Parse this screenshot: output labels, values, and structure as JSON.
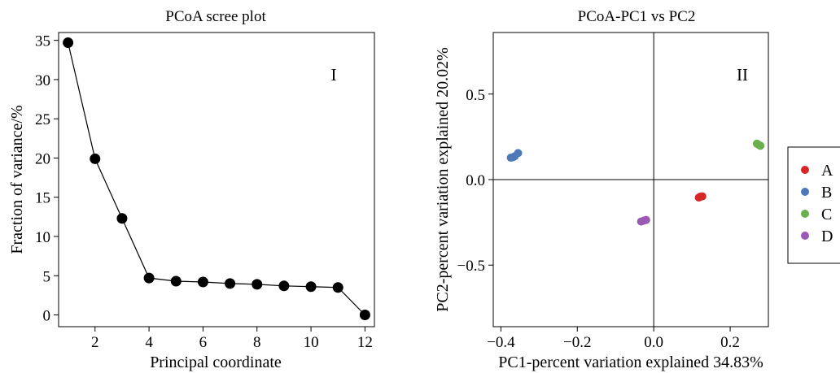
{
  "chart_data": [
    {
      "type": "line",
      "title": "PCoA scree plot",
      "panel_label": "I",
      "xlabel": "Principal coordinate",
      "ylabel": "Fraction of variance/%",
      "xlim": [
        0.65,
        12.35
      ],
      "ylim": [
        -1.5,
        36
      ],
      "xticks": [
        2,
        4,
        6,
        8,
        10,
        12
      ],
      "yticks": [
        0,
        5,
        10,
        15,
        20,
        25,
        30,
        35
      ],
      "x": [
        1,
        2,
        3,
        4,
        5,
        6,
        7,
        8,
        9,
        10,
        11,
        12
      ],
      "values": [
        34.7,
        19.9,
        12.3,
        4.7,
        4.3,
        4.2,
        4.0,
        3.9,
        3.7,
        3.6,
        3.5,
        0.0
      ],
      "marker_color": "#000000",
      "grid": false
    },
    {
      "type": "scatter",
      "title": "PCoA-PC1 vs PC2",
      "panel_label": "II",
      "xlabel": "PC1-percent variation explained 34.83%",
      "ylabel": "PC2-percent variation explained 20.02%",
      "xlim": [
        -0.42,
        0.3
      ],
      "ylim": [
        -0.86,
        0.86
      ],
      "xticks": [
        -0.4,
        -0.2,
        0.0,
        0.2
      ],
      "xtick_labels": [
        "−0.4",
        "−0.2",
        "0.0",
        "0.2"
      ],
      "yticks": [
        -0.5,
        0.0,
        0.5
      ],
      "ytick_labels": [
        "−0.5",
        "0.0",
        "0.5"
      ],
      "reference_lines": {
        "x": 0,
        "y": 0
      },
      "legend_position": "right",
      "series": [
        {
          "name": "A",
          "color": "#d62728",
          "points": [
            [
              0.118,
              -0.105
            ],
            [
              0.122,
              -0.1
            ],
            [
              0.127,
              -0.098
            ]
          ]
        },
        {
          "name": "B",
          "color": "#4e79b7",
          "points": [
            [
              -0.374,
              0.128
            ],
            [
              -0.369,
              0.13
            ],
            [
              -0.364,
              0.136
            ],
            [
              -0.355,
              0.155
            ]
          ]
        },
        {
          "name": "C",
          "color": "#6ab04c",
          "points": [
            [
              0.27,
              0.21
            ],
            [
              0.275,
              0.203
            ],
            [
              0.279,
              0.198
            ]
          ]
        },
        {
          "name": "D",
          "color": "#9b59b6",
          "points": [
            [
              -0.033,
              -0.245
            ],
            [
              -0.026,
              -0.24
            ],
            [
              -0.02,
              -0.236
            ]
          ]
        }
      ],
      "grid": false
    }
  ]
}
